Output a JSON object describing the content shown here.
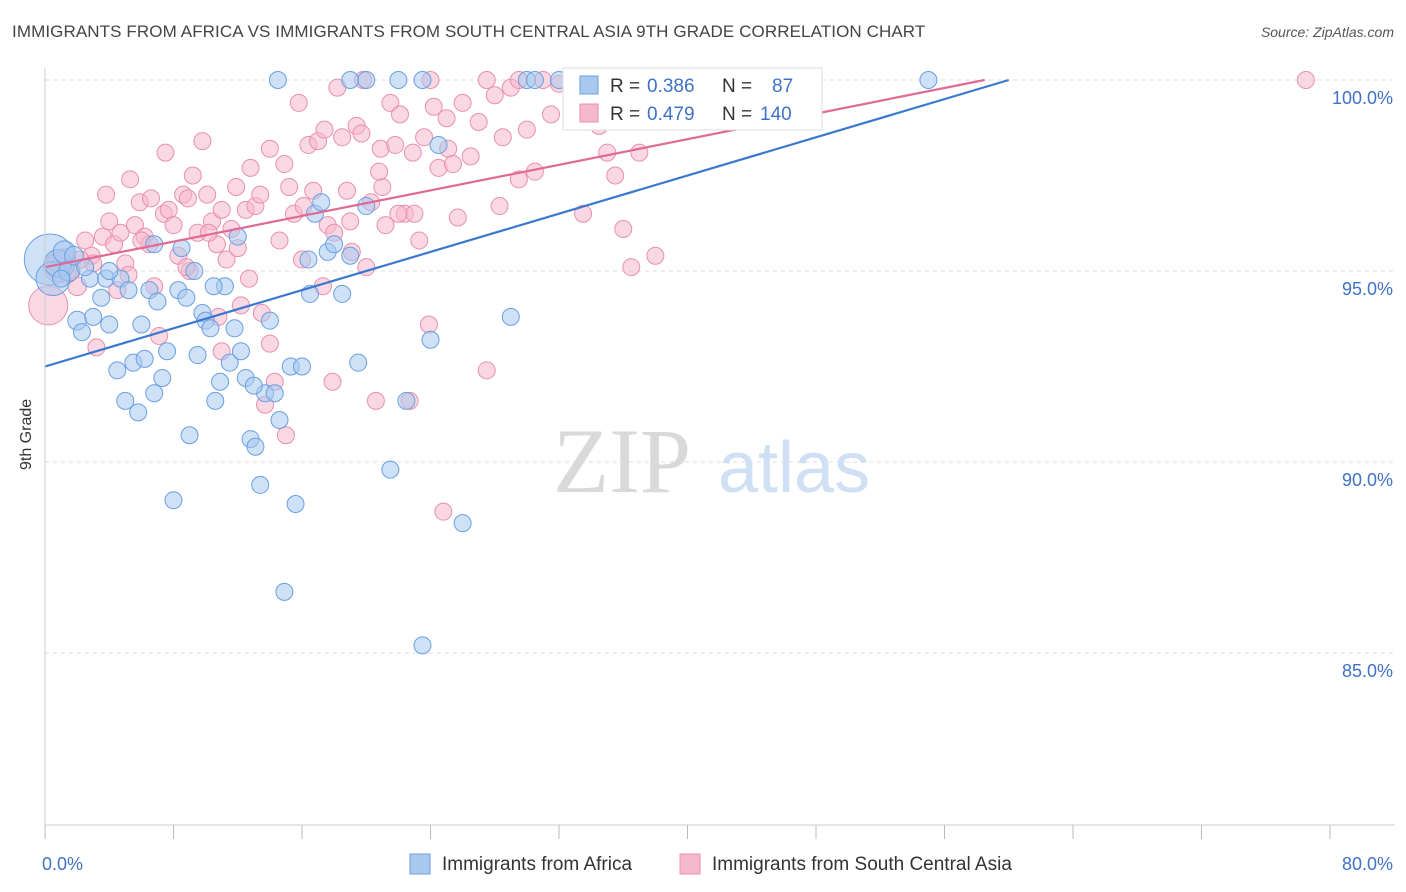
{
  "title": "IMMIGRANTS FROM AFRICA VS IMMIGRANTS FROM SOUTH CENTRAL ASIA 9TH GRADE CORRELATION CHART",
  "source": "Source: ZipAtlas.com",
  "watermark": {
    "zip": "ZIP",
    "atlas": "atlas"
  },
  "colors": {
    "blue_fill": "#a8c8f0",
    "blue_stroke": "#6a9fe0",
    "blue_line": "#3b78d0",
    "pink_fill": "#f6b8cc",
    "pink_stroke": "#e890ad",
    "pink_line": "#e06a94",
    "axis_text": "#3f72c8",
    "grid": "#dddddd"
  },
  "legend_stats": {
    "r_label": "R =",
    "n_label": "N =",
    "blue": {
      "r": "0.386",
      "n": "87"
    },
    "pink": {
      "r": "0.479",
      "n": "140"
    }
  },
  "chart_data": {
    "type": "scatter",
    "title": "IMMIGRANTS FROM AFRICA VS IMMIGRANTS FROM SOUTH CENTRAL ASIA 9TH GRADE CORRELATION CHART",
    "xlabel": "",
    "ylabel": "9th Grade",
    "xlim": [
      0,
      80
    ],
    "ylim": [
      80.5,
      100.8
    ],
    "x_tick_labels": [
      {
        "value": 0,
        "label": "0.0%"
      },
      {
        "value": 80,
        "label": "80.0%"
      }
    ],
    "y_tick_labels": [
      {
        "value": 100,
        "label": "100.0%"
      },
      {
        "value": 95,
        "label": "95.0%"
      },
      {
        "value": 90,
        "label": "90.0%"
      },
      {
        "value": 85,
        "label": "85.0%"
      }
    ],
    "x_minor_ticks": [
      0,
      8,
      16,
      24,
      32,
      40,
      48,
      56,
      64,
      72,
      80
    ],
    "legend": [
      "Immigrants from Africa",
      "Immigrants from South Central Asia"
    ],
    "series": [
      {
        "name": "Immigrants from Africa",
        "color": "blue",
        "trend": {
          "x0": 0,
          "y0": 92.5,
          "x1": 60,
          "y1": 100.0
        },
        "points": [
          [
            0.3,
            95.3,
            3
          ],
          [
            0.5,
            94.8,
            2
          ],
          [
            0.8,
            95.2,
            1.6
          ],
          [
            1.2,
            95.5,
            1.3
          ],
          [
            1.5,
            95.0,
            1.2
          ],
          [
            1.8,
            95.4,
            1.1
          ],
          [
            2.0,
            93.7,
            1.1
          ],
          [
            2.3,
            93.4,
            1
          ],
          [
            2.8,
            94.8,
            1
          ],
          [
            3.0,
            93.8,
            1
          ],
          [
            3.5,
            94.3,
            1
          ],
          [
            3.8,
            94.8,
            1
          ],
          [
            4.0,
            93.6,
            1
          ],
          [
            4.5,
            92.4,
            1
          ],
          [
            4.7,
            94.8,
            1
          ],
          [
            5.0,
            91.6,
            1
          ],
          [
            5.2,
            94.5,
            1
          ],
          [
            5.5,
            92.6,
            1
          ],
          [
            5.8,
            91.3,
            1
          ],
          [
            6.0,
            93.6,
            1
          ],
          [
            6.2,
            92.7,
            1
          ],
          [
            6.5,
            94.5,
            1
          ],
          [
            6.8,
            91.8,
            1
          ],
          [
            7.0,
            94.2,
            1
          ],
          [
            7.3,
            92.2,
            1
          ],
          [
            7.6,
            92.9,
            1
          ],
          [
            8.0,
            89.0,
            1
          ],
          [
            8.3,
            94.5,
            1
          ],
          [
            8.5,
            95.6,
            1
          ],
          [
            8.8,
            94.3,
            1
          ],
          [
            9.0,
            90.7,
            1
          ],
          [
            9.3,
            95.0,
            1
          ],
          [
            9.5,
            92.8,
            1
          ],
          [
            9.8,
            93.9,
            1
          ],
          [
            10.0,
            93.7,
            1
          ],
          [
            10.3,
            93.5,
            1
          ],
          [
            10.6,
            91.6,
            1
          ],
          [
            10.9,
            92.1,
            1
          ],
          [
            11.2,
            94.6,
            1
          ],
          [
            11.5,
            92.6,
            1
          ],
          [
            11.8,
            93.5,
            1
          ],
          [
            12.2,
            92.9,
            1
          ],
          [
            12.5,
            92.2,
            1
          ],
          [
            12.8,
            90.6,
            1
          ],
          [
            13.1,
            90.4,
            1
          ],
          [
            13.4,
            89.4,
            1
          ],
          [
            13.7,
            91.8,
            1
          ],
          [
            14.0,
            93.7,
            1
          ],
          [
            14.3,
            91.8,
            1
          ],
          [
            14.6,
            91.1,
            1
          ],
          [
            14.9,
            86.6,
            1
          ],
          [
            15.3,
            92.5,
            1
          ],
          [
            15.6,
            88.9,
            1
          ],
          [
            16.0,
            92.5,
            1
          ],
          [
            16.4,
            95.3,
            1
          ],
          [
            16.8,
            96.5,
            1
          ],
          [
            17.2,
            96.8,
            1
          ],
          [
            17.6,
            95.5,
            1
          ],
          [
            18.0,
            95.7,
            1
          ],
          [
            18.5,
            94.4,
            1
          ],
          [
            19.0,
            95.4,
            1
          ],
          [
            19.5,
            92.6,
            1
          ],
          [
            20.0,
            96.7,
            1
          ],
          [
            21.5,
            89.8,
            1
          ],
          [
            22.5,
            91.6,
            1
          ],
          [
            23.5,
            85.2,
            1
          ],
          [
            24.0,
            93.2,
            1
          ],
          [
            24.5,
            98.3,
            1
          ],
          [
            26.0,
            88.4,
            1
          ],
          [
            29.0,
            93.8,
            1
          ],
          [
            14.5,
            100.0,
            1
          ],
          [
            19.0,
            100.0,
            1
          ],
          [
            20.0,
            100.0,
            1
          ],
          [
            22.0,
            100.0,
            1
          ],
          [
            23.5,
            100.0,
            1
          ],
          [
            30.0,
            100.0,
            1
          ],
          [
            30.5,
            100.0,
            1
          ],
          [
            32.0,
            100.0,
            1
          ],
          [
            33.0,
            100.0,
            1
          ],
          [
            55.0,
            100.0,
            1
          ],
          [
            12.0,
            95.9,
            1
          ],
          [
            4.0,
            95.0,
            1
          ],
          [
            2.5,
            95.1,
            1
          ],
          [
            1.0,
            94.8,
            1
          ],
          [
            6.8,
            95.7,
            1
          ],
          [
            10.5,
            94.6,
            1
          ],
          [
            16.5,
            94.4,
            1
          ],
          [
            13.0,
            92.0,
            1
          ]
        ]
      },
      {
        "name": "Immigrants from South Central Asia",
        "color": "pink",
        "trend": {
          "x0": 0,
          "y0": 95.1,
          "x1": 58.5,
          "y1": 100.0
        },
        "points": [
          [
            0.2,
            94.1,
            2.3
          ],
          [
            0.8,
            95.1,
            1.7
          ],
          [
            1.2,
            95.3,
            1.3
          ],
          [
            1.6,
            95.0,
            1.1
          ],
          [
            2.0,
            94.6,
            1.1
          ],
          [
            2.5,
            95.8,
            1
          ],
          [
            2.9,
            95.4,
            1
          ],
          [
            3.2,
            93.0,
            1
          ],
          [
            3.6,
            95.9,
            1
          ],
          [
            3.8,
            97.0,
            1
          ],
          [
            4.0,
            96.3,
            1
          ],
          [
            4.3,
            95.7,
            1
          ],
          [
            4.7,
            96.0,
            1
          ],
          [
            5.0,
            95.2,
            1
          ],
          [
            5.3,
            97.4,
            1
          ],
          [
            5.6,
            96.2,
            1
          ],
          [
            5.9,
            96.8,
            1
          ],
          [
            6.2,
            95.9,
            1
          ],
          [
            6.5,
            95.7,
            1
          ],
          [
            6.8,
            94.6,
            1
          ],
          [
            7.1,
            93.3,
            1
          ],
          [
            7.4,
            96.5,
            1
          ],
          [
            7.7,
            96.6,
            1
          ],
          [
            8.0,
            96.2,
            1
          ],
          [
            8.3,
            95.4,
            1
          ],
          [
            8.6,
            97.0,
            1
          ],
          [
            8.9,
            96.9,
            1
          ],
          [
            9.2,
            97.5,
            1
          ],
          [
            9.5,
            96.0,
            1
          ],
          [
            9.8,
            98.4,
            1
          ],
          [
            10.1,
            97.0,
            1
          ],
          [
            10.4,
            96.3,
            1
          ],
          [
            10.7,
            95.7,
            1
          ],
          [
            11.0,
            96.6,
            1
          ],
          [
            11.3,
            95.3,
            1
          ],
          [
            11.6,
            96.1,
            1
          ],
          [
            11.9,
            97.2,
            1
          ],
          [
            12.2,
            94.1,
            1
          ],
          [
            12.5,
            96.6,
            1
          ],
          [
            12.8,
            97.7,
            1
          ],
          [
            13.1,
            96.7,
            1
          ],
          [
            13.4,
            97.0,
            1
          ],
          [
            13.7,
            91.5,
            1
          ],
          [
            14.0,
            98.2,
            1
          ],
          [
            14.3,
            92.1,
            1
          ],
          [
            14.6,
            95.8,
            1
          ],
          [
            14.9,
            97.8,
            1
          ],
          [
            15.2,
            97.2,
            1
          ],
          [
            15.5,
            96.5,
            1
          ],
          [
            15.8,
            99.4,
            1
          ],
          [
            16.1,
            96.7,
            1
          ],
          [
            16.4,
            98.3,
            1
          ],
          [
            16.7,
            97.1,
            1
          ],
          [
            17.0,
            98.4,
            1
          ],
          [
            17.3,
            94.6,
            1
          ],
          [
            17.6,
            96.2,
            1
          ],
          [
            17.9,
            92.1,
            1
          ],
          [
            18.2,
            99.8,
            1
          ],
          [
            18.5,
            98.5,
            1
          ],
          [
            18.8,
            97.1,
            1
          ],
          [
            19.1,
            95.5,
            1
          ],
          [
            19.4,
            98.8,
            1
          ],
          [
            19.7,
            98.6,
            1
          ],
          [
            20.0,
            95.1,
            1
          ],
          [
            20.3,
            96.8,
            1
          ],
          [
            20.6,
            91.6,
            1
          ],
          [
            20.9,
            98.2,
            1
          ],
          [
            21.2,
            96.2,
            1
          ],
          [
            21.5,
            99.4,
            1
          ],
          [
            21.8,
            98.3,
            1
          ],
          [
            22.1,
            99.1,
            1
          ],
          [
            22.4,
            96.5,
            1
          ],
          [
            22.7,
            91.6,
            1
          ],
          [
            23.0,
            96.5,
            1
          ],
          [
            23.3,
            95.8,
            1
          ],
          [
            23.6,
            98.5,
            1
          ],
          [
            23.9,
            93.6,
            1
          ],
          [
            24.2,
            99.3,
            1
          ],
          [
            24.5,
            97.7,
            1
          ],
          [
            24.8,
            88.7,
            1
          ],
          [
            25.1,
            98.2,
            1
          ],
          [
            25.4,
            97.8,
            1
          ],
          [
            25.7,
            96.4,
            1
          ],
          [
            26.0,
            99.4,
            1
          ],
          [
            27.0,
            98.9,
            1
          ],
          [
            27.5,
            92.4,
            1
          ],
          [
            28.0,
            99.6,
            1
          ],
          [
            28.5,
            98.5,
            1
          ],
          [
            29.0,
            99.8,
            1
          ],
          [
            29.5,
            97.4,
            1
          ],
          [
            30.0,
            98.7,
            1
          ],
          [
            31.0,
            100.0,
            1
          ],
          [
            32.0,
            99.9,
            1
          ],
          [
            33.0,
            99.8,
            1
          ],
          [
            34.0,
            99.5,
            1
          ],
          [
            35.0,
            98.1,
            1
          ],
          [
            35.5,
            97.5,
            1
          ],
          [
            36.0,
            96.1,
            1
          ],
          [
            36.5,
            95.1,
            1
          ],
          [
            37.0,
            98.1,
            1
          ],
          [
            38.0,
            95.4,
            1
          ],
          [
            40.0,
            100.0,
            1
          ],
          [
            78.5,
            100.0,
            1
          ],
          [
            3.0,
            95.2,
            1
          ],
          [
            4.5,
            94.5,
            1
          ],
          [
            6.0,
            95.8,
            1
          ],
          [
            9.0,
            95.0,
            1
          ],
          [
            10.8,
            93.8,
            1
          ],
          [
            12.0,
            95.6,
            1
          ],
          [
            13.5,
            93.9,
            1
          ],
          [
            15.0,
            90.7,
            1
          ],
          [
            16.0,
            95.3,
            1
          ],
          [
            18.0,
            96.0,
            1
          ],
          [
            14.0,
            93.1,
            1
          ],
          [
            7.5,
            98.1,
            1
          ],
          [
            8.8,
            95.1,
            1
          ],
          [
            11.0,
            92.9,
            1
          ],
          [
            12.7,
            94.8,
            1
          ],
          [
            19.0,
            96.3,
            1
          ],
          [
            21.0,
            97.2,
            1
          ],
          [
            22.0,
            96.5,
            1
          ],
          [
            24.0,
            100.0,
            1
          ],
          [
            25.0,
            99.0,
            1
          ],
          [
            26.5,
            98.0,
            1
          ],
          [
            28.3,
            96.7,
            1
          ],
          [
            30.5,
            97.6,
            1
          ],
          [
            31.5,
            99.1,
            1
          ],
          [
            33.5,
            96.5,
            1
          ],
          [
            34.5,
            98.8,
            1
          ],
          [
            5.2,
            94.9,
            1
          ],
          [
            6.6,
            96.9,
            1
          ],
          [
            10.2,
            96.0,
            1
          ],
          [
            17.4,
            98.7,
            1
          ],
          [
            19.8,
            100.0,
            1
          ],
          [
            20.8,
            97.6,
            1
          ],
          [
            22.9,
            98.1,
            1
          ],
          [
            27.5,
            100.0,
            1
          ],
          [
            29.5,
            100.0,
            1
          ],
          [
            35.8,
            99.6,
            1
          ],
          [
            37.5,
            100.0,
            1
          ],
          [
            2.2,
            95.3,
            1
          ],
          [
            1.4,
            94.9,
            1
          ],
          [
            0.6,
            95.2,
            1
          ]
        ]
      }
    ]
  },
  "legend_bottom": {
    "blue_label": "Immigrants from Africa",
    "pink_label": "Immigrants from South Central Asia"
  }
}
